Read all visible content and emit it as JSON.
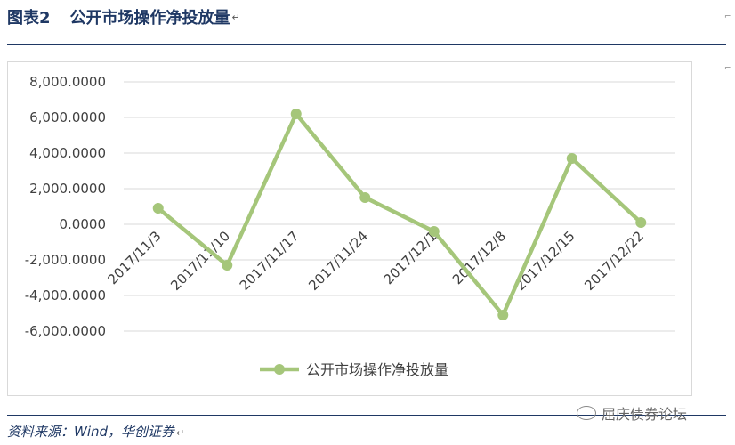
{
  "figure": {
    "number": "图表2",
    "title": "公开市场操作净投放量",
    "source": "资料来源：Wind，华创证券",
    "watermark": "屈庆债券论坛"
  },
  "colors": {
    "header": "#1f3864",
    "series": "#a5c67a",
    "grid": "#d9d9d9",
    "axis_text": "#404040"
  },
  "chart_data": {
    "type": "line",
    "title": "",
    "xlabel": "",
    "ylabel": "",
    "categories": [
      "2017/11/3",
      "2017/11/10",
      "2017/11/17",
      "2017/11/24",
      "2017/12/1",
      "2017/12/8",
      "2017/12/15",
      "2017/12/22"
    ],
    "series": [
      {
        "name": "公开市场操作净投放量",
        "values": [
          900,
          -2300,
          6200,
          1500,
          -400,
          -5100,
          3700,
          100
        ]
      }
    ],
    "ylim": [
      -6000,
      8000
    ],
    "yticks": [
      "8,000.0000",
      "6,000.0000",
      "4,000.0000",
      "2,000.0000",
      "0.0000",
      "-2,000.0000",
      "-4,000.0000",
      "-6,000.0000"
    ],
    "ytick_values": [
      8000,
      6000,
      4000,
      2000,
      0,
      -2000,
      -4000,
      -6000
    ],
    "grid": true,
    "legend_position": "bottom"
  }
}
